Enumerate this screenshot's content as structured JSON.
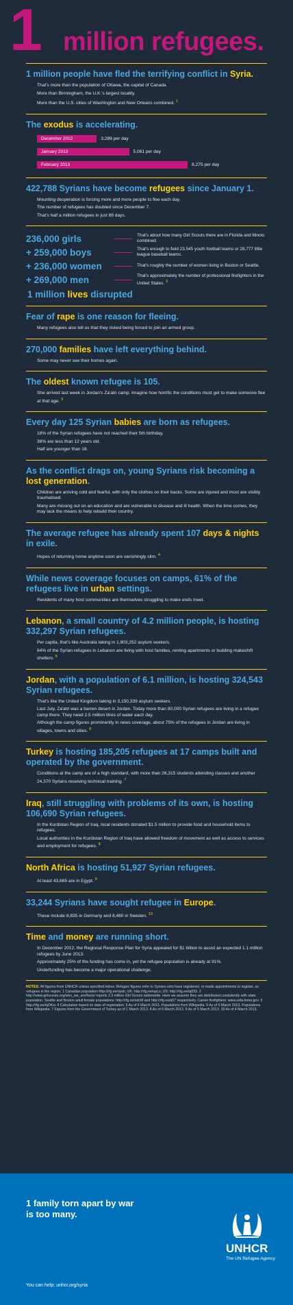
{
  "heading_color": "#4aa8e0",
  "title": {
    "number": "1",
    "text": "million refugees."
  },
  "sections": [
    {
      "heading": [
        {
          "text": "1 million people have fled the terrifying conflict in "
        },
        {
          "text": "Syria.",
          "color": "#ffd200"
        }
      ],
      "paragraphs": [
        "That's more than the population of Ottawa, the capital of Canada.",
        "More than Birmingham, the U.K.'s largest locality.",
        "More than the U.S. cities of Washington and New Orleans combined."
      ],
      "ref": "1"
    },
    {
      "heading": [
        {
          "text": "The "
        },
        {
          "text": "exodus",
          "color": "#ffd200"
        },
        {
          "text": " is accelerating."
        }
      ],
      "bar_color": "#c4177c",
      "bars": [
        {
          "label": "December 2012",
          "value": 3288,
          "value_label": "3,288 per day"
        },
        {
          "label": "January 2013",
          "value": 5061,
          "value_label": "5,061 per day"
        },
        {
          "label": "February 2013",
          "value": 8275,
          "value_label": "8,275 per day"
        }
      ]
    },
    {
      "heading": [
        {
          "text": "422,788 Syrians have become "
        },
        {
          "text": "refugees",
          "color": "#ffd200"
        },
        {
          "text": " since January 1."
        }
      ],
      "paragraphs": [
        "Mounting desperation is forcing more and more people to flee each day.",
        "The number of refugees has doubled since December 7.",
        "That's half a million refugees in just 89 days."
      ]
    },
    {
      "people": [
        {
          "amount": "236,000 girls",
          "note": "That's about how many Girl Scouts there are in Florida and Illinois combined."
        },
        {
          "amount": "+ 259,000 boys",
          "note": "That's enough to field 23,545 youth football teams or 28,777 little league baseball teams."
        },
        {
          "amount": "+ 236,000 women",
          "note": "That's roughly the number of women living in Boston or Seattle."
        },
        {
          "amount": "+ 269,000 men",
          "note": "That's approximately the number of professional firefighters in the United States."
        }
      ],
      "total": [
        {
          "text": "1 million "
        },
        {
          "text": "lives",
          "color": "#ffd200"
        },
        {
          "text": " disrupted"
        }
      ],
      "ref": "2"
    },
    {
      "heading": [
        {
          "text": "Fear of "
        },
        {
          "text": "rape",
          "color": "#ffd200"
        },
        {
          "text": " is one reason for fleeing."
        }
      ],
      "paragraphs": [
        "Many refugees also tell us that they risked being forced to join an armed group."
      ]
    },
    {
      "heading": [
        {
          "text": "270,000 "
        },
        {
          "text": "families",
          "color": "#ffd200"
        },
        {
          "text": " have left everything behind."
        }
      ],
      "paragraphs": [
        "Some may never see their homes again."
      ]
    },
    {
      "heading": [
        {
          "text": "The "
        },
        {
          "text": "oldest",
          "color": "#ffd200"
        },
        {
          "text": " known refugee is 105."
        }
      ],
      "paragraphs": [
        "She arrived last week in Jordan's Za'atri camp. Imagine how horrific the conditions must get to make someone flee at that age."
      ],
      "ref": "3"
    },
    {
      "heading": [
        {
          "text": "Every day 125 Syrian "
        },
        {
          "text": "babies",
          "color": "#ffd200"
        },
        {
          "text": " are born as refugees."
        }
      ],
      "paragraphs": [
        "18% of the Syrian refugees have not reached their 5th birthday.",
        "38% are less than 12 years old.",
        "Half are younger than 18."
      ]
    },
    {
      "heading": [
        {
          "text": "As the conflict drags on, young Syrians risk becoming a "
        },
        {
          "text": "lost generation",
          "color": "#ffd200"
        },
        {
          "text": "."
        }
      ],
      "paragraphs": [
        "Children are arriving cold and fearful, with only the clothes on their backs. Some are injured and most are visibly traumatised.",
        "Many are missing out on an education and are vulnerable to disease and ill health. When the time comes, they may lack the means to help rebuild their country."
      ]
    },
    {
      "heading": [
        {
          "text": "The average refugee has already spent 107 "
        },
        {
          "text": "days & nights",
          "color": "#ffd200"
        },
        {
          "text": " in exile."
        }
      ],
      "paragraphs": [
        "Hopes of returning home anytime soon are vanishingly slim."
      ],
      "ref": "4"
    },
    {
      "heading": [
        {
          "text": "While news coverage focuses on camps, 61% of the refugees live in "
        },
        {
          "text": "urban",
          "color": "#ffd200"
        },
        {
          "text": " settings."
        }
      ],
      "paragraphs": [
        "Residents of many host communities are themselves struggling to make ends meet."
      ]
    },
    {
      "heading": [
        {
          "text": "Lebanon",
          "color": "#ffd200"
        },
        {
          "text": ", a small country of 4.2 million people, is hosting 332,297 Syrian refugees."
        }
      ],
      "paragraphs": [
        "Per capita, that's like Australia taking in 1,803,252 asylum seekers.",
        "64% of the Syrian refugees in Lebanon are living with host families, renting apartments or building makeshift shelters."
      ],
      "ref": "5"
    },
    {
      "heading": [
        {
          "text": "Jordan",
          "color": "#ffd200"
        },
        {
          "text": ", with a population of 6.1 million, is hosting 324,543 Syrian refugees."
        }
      ],
      "paragraphs": [
        "That's like the United Kingdom taking in 3,150,339 asylum seekers.",
        "Last July, Za'atri was a barren desert in Jordan. Today more than 80,000 Syrian refugees are living in a refugee camp there. They need 2.5 million litres of water each day.",
        "Although the camp figures prominently in news coverage, about 75% of the refugees in Jordan are living in villages, towns and cities."
      ],
      "ref": "6"
    },
    {
      "heading": [
        {
          "text": "Turkey",
          "color": "#ffd200"
        },
        {
          "text": " is hosting 185,205 refugees at 17 camps built and operated by the government."
        }
      ],
      "paragraphs": [
        "Conditions at the camp are of a high standard, with more than 26,315 students attending classes and another 24,370 Syrians receiving technical training."
      ],
      "ref": "7"
    },
    {
      "heading": [
        {
          "text": "Iraq",
          "color": "#ffd200"
        },
        {
          "text": ", still struggling with problems of its own, is hosting 106,690 Syrian refugees."
        }
      ],
      "paragraphs": [
        "In the Kurdistan Region of Iraq, local residents donated $1.5 million to provide food and household items to refugees.",
        "Local authorities in the Kurdistan Region of Iraq have allowed freedom of movement as well as access to services and employment for refugees."
      ],
      "ref": "8"
    },
    {
      "heading": [
        {
          "text": "North Africa",
          "color": "#ffd200"
        },
        {
          "text": " is hosting 51,927 Syrian refugees."
        }
      ],
      "paragraphs": [
        "At least 43,665 are in Egypt."
      ],
      "ref": "9"
    },
    {
      "heading": [
        {
          "text": "33,244 Syrians have sought refugee in "
        },
        {
          "text": "Europe",
          "color": "#ffd200"
        },
        {
          "text": "."
        }
      ],
      "paragraphs": [
        "These include 8,835 in Germany and 8,460 in Sweden."
      ],
      "ref": "10"
    },
    {
      "heading": [
        {
          "text": "Time",
          "color": "#ffd200"
        },
        {
          "text": " and "
        },
        {
          "text": "money",
          "color": "#ffd200"
        },
        {
          "text": " are running short."
        }
      ],
      "paragraphs": [
        "In December 2012, the Regional Response Plan for Syria appealed for $1 billion to assist an expected 1.1 million refugees by June 2013.",
        "Approximately 25% of the funding has come in, yet the refugee population is already at 91%.",
        "Underfunding has become a major operational challenge."
      ]
    }
  ],
  "notes": {
    "label": "NOTES:",
    "text": "All figures from UNHCR unless specified below. Refugee figures refer to Syrians who have registered, or made appointments to register, as refugees in the region. 1 Canadian population http://rfg.ee/xpzk; UK: http://rfg.ee/upLs; US: http://rfg.ee/iq033. 2 http://www.girlscouts.org/who_we_are/facts/ reports 2.3 million Girl Scouts nationwide. Here we assume they are distributed consistently with state population. Seattle and Boston adult female populations: http://rfg.ee/sdcM and http://rfg.ee/q07 respectively. Career firefighters: www.usfa.fema.gov. 3 http://rfg.ee/iqOKw. 4 Calculation based on date of registration. 5 As of 6 March 2013. Populations from Wikipedia. 6 As of 6 March 2013. Populations from Wikipedia. 7 Figures from the Government of Turkey as of 1 March 2013. 8 As of 6 March 2013. 9 As of 5 March 2013. 10 As of 4 March 2013."
  },
  "footer": {
    "line1": "1 family torn apart by war",
    "line2": "is too many.",
    "help": "You can help: unhcr.org/syria",
    "org": "UNHCR",
    "org_sub": "The UN Refugee Agency"
  }
}
